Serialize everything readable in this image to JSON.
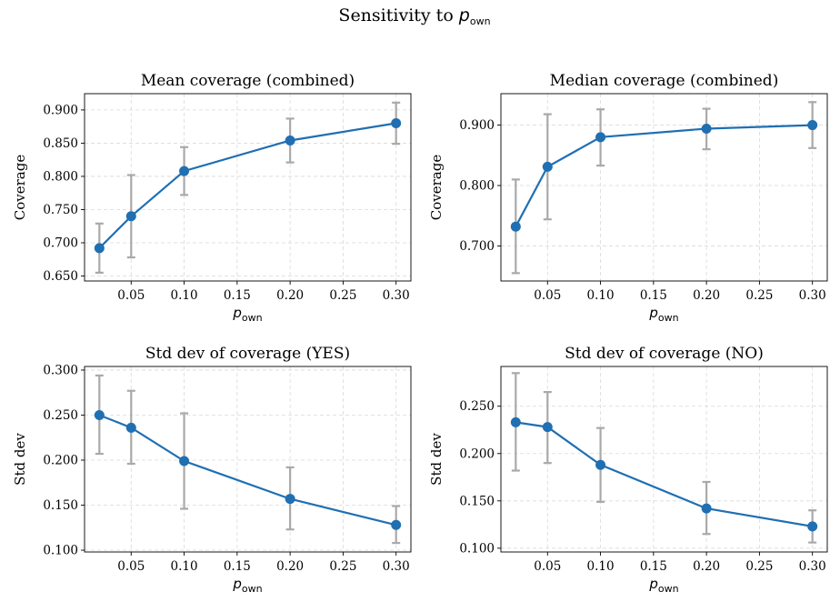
{
  "suptitle": {
    "prefix": "Sensitivity to ",
    "var": "p",
    "sub": "own"
  },
  "colors": {
    "line": "#1f6fb2",
    "errorbar": "#a9a9a9",
    "grid": "#d9d9d9"
  },
  "chart_data": [
    {
      "type": "line",
      "title": "Mean coverage (combined)",
      "xlabel": {
        "var": "p",
        "sub": "own"
      },
      "ylabel": "Coverage",
      "x": [
        0.02,
        0.05,
        0.1,
        0.2,
        0.3
      ],
      "y": [
        0.692,
        0.74,
        0.808,
        0.854,
        0.88
      ],
      "yerr_low": [
        0.655,
        0.678,
        0.772,
        0.821,
        0.849
      ],
      "yerr_high": [
        0.729,
        0.802,
        0.844,
        0.887,
        0.911
      ],
      "xlim": [
        0.006,
        0.314
      ],
      "ylim": [
        0.6425,
        0.9245
      ],
      "xticks": [
        "0.05",
        "0.10",
        "0.15",
        "0.20",
        "0.25",
        "0.30"
      ],
      "yticks": [
        "0.650",
        "0.700",
        "0.750",
        "0.800",
        "0.850",
        "0.900"
      ],
      "grid": true
    },
    {
      "type": "line",
      "title": "Median coverage (combined)",
      "xlabel": {
        "var": "p",
        "sub": "own"
      },
      "ylabel": "Coverage",
      "x": [
        0.02,
        0.05,
        0.1,
        0.2,
        0.3
      ],
      "y": [
        0.732,
        0.831,
        0.88,
        0.894,
        0.9
      ],
      "yerr_low": [
        0.655,
        0.744,
        0.833,
        0.86,
        0.862
      ],
      "yerr_high": [
        0.81,
        0.918,
        0.926,
        0.927,
        0.938
      ],
      "xlim": [
        0.006,
        0.314
      ],
      "ylim": [
        0.642,
        0.952
      ],
      "xticks": [
        "0.05",
        "0.10",
        "0.15",
        "0.20",
        "0.25",
        "0.30"
      ],
      "yticks": [
        "0.700",
        "0.800",
        "0.900"
      ],
      "grid": true
    },
    {
      "type": "line",
      "title": "Std dev of coverage (YES)",
      "xlabel": {
        "var": "p",
        "sub": "own"
      },
      "ylabel": "Std dev",
      "x": [
        0.02,
        0.05,
        0.1,
        0.2,
        0.3
      ],
      "y": [
        0.25,
        0.236,
        0.199,
        0.157,
        0.128
      ],
      "yerr_low": [
        0.207,
        0.196,
        0.146,
        0.123,
        0.108
      ],
      "yerr_high": [
        0.294,
        0.277,
        0.252,
        0.192,
        0.149
      ],
      "xlim": [
        0.006,
        0.314
      ],
      "ylim": [
        0.098,
        0.304
      ],
      "xticks": [
        "0.05",
        "0.10",
        "0.15",
        "0.20",
        "0.25",
        "0.30"
      ],
      "yticks": [
        "0.100",
        "0.150",
        "0.200",
        "0.250",
        "0.300"
      ],
      "grid": true
    },
    {
      "type": "line",
      "title": "Std dev of coverage (NO)",
      "xlabel": {
        "var": "p",
        "sub": "own"
      },
      "ylabel": "Std dev",
      "x": [
        0.02,
        0.05,
        0.1,
        0.2,
        0.3
      ],
      "y": [
        0.233,
        0.228,
        0.188,
        0.142,
        0.123
      ],
      "yerr_low": [
        0.182,
        0.19,
        0.149,
        0.115,
        0.106
      ],
      "yerr_high": [
        0.285,
        0.265,
        0.227,
        0.17,
        0.14
      ],
      "xlim": [
        0.006,
        0.314
      ],
      "ylim": [
        0.096,
        0.292
      ],
      "xticks": [
        "0.05",
        "0.10",
        "0.15",
        "0.20",
        "0.25",
        "0.30"
      ],
      "yticks": [
        "0.100",
        "0.150",
        "0.200",
        "0.250"
      ],
      "grid": true
    }
  ]
}
